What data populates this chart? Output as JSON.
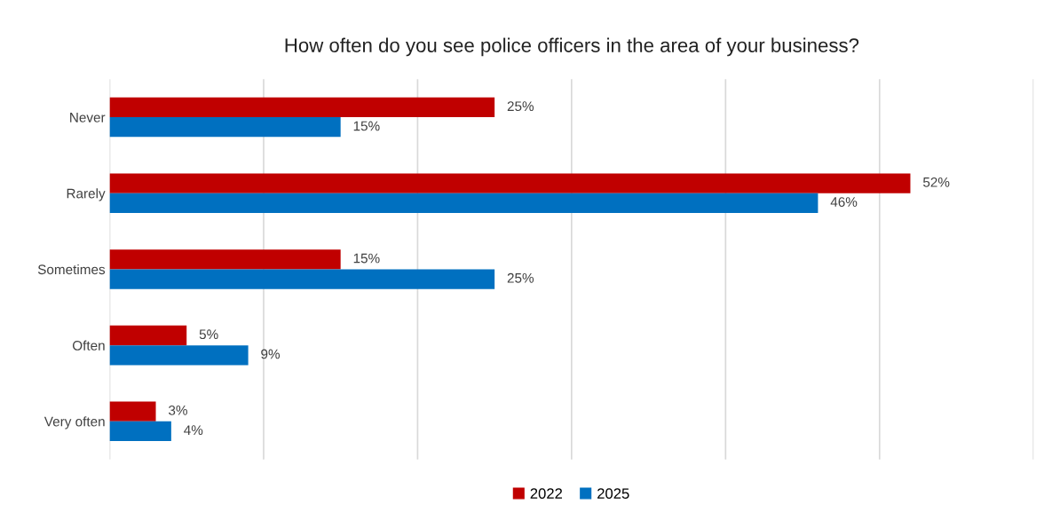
{
  "chart_data": {
    "type": "bar",
    "orientation": "horizontal",
    "title": "How often do you see police officers in the area of your business?",
    "categories": [
      "Never",
      "Rarely",
      "Sometimes",
      "Often",
      "Very often"
    ],
    "series": [
      {
        "name": "2022",
        "color": "#c00000",
        "values": [
          25,
          52,
          15,
          5,
          3
        ],
        "value_labels": [
          "25%",
          "52%",
          "15%",
          "5%",
          "3%"
        ]
      },
      {
        "name": "2025",
        "color": "#0070c0",
        "values": [
          15,
          46,
          25,
          9,
          4
        ],
        "value_labels": [
          "15%",
          "46%",
          "25%",
          "9%",
          "4%"
        ]
      }
    ],
    "xlim": [
      0,
      60
    ],
    "xticks": [
      {
        "value": 0,
        "label": null
      },
      {
        "value": 10,
        "label": null
      },
      {
        "value": 20,
        "label": null
      },
      {
        "value": 30,
        "label": null
      },
      {
        "value": 40,
        "label": null
      },
      {
        "value": 50,
        "label": null
      },
      {
        "value": 60,
        "label": null
      }
    ],
    "grid": "x",
    "legend": "bottom"
  }
}
